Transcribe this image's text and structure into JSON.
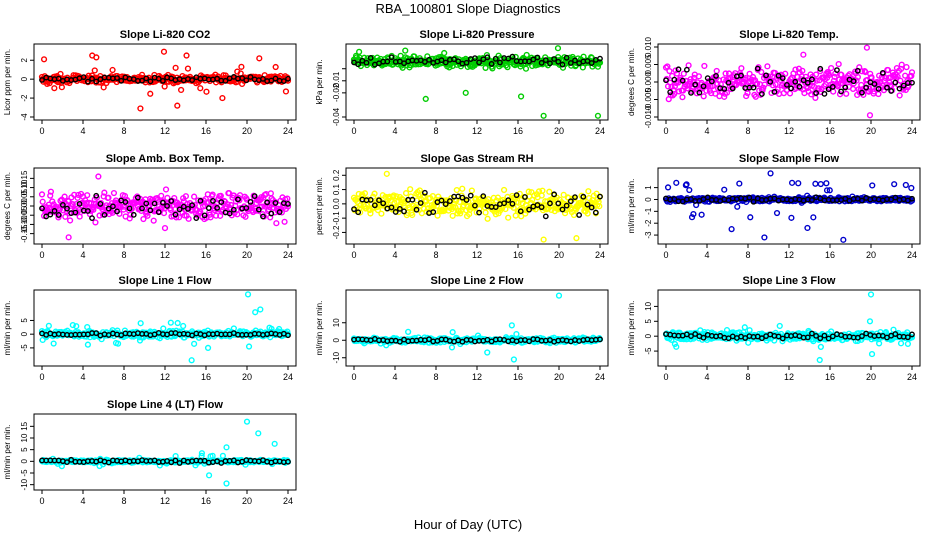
{
  "figure": {
    "title": "RBA_100801  Slope Diagnostics",
    "xlabel": "Hour of Day (UTC)"
  },
  "chart_data": [
    {
      "type": "scatter",
      "title": "Slope Li-820 CO2",
      "ylabel": "Licor ppm per min.",
      "color": "#ff0000",
      "xlim": [
        0,
        24
      ],
      "ylim": [
        -4,
        3.4
      ],
      "xticks": [
        0,
        4,
        8,
        12,
        16,
        20,
        24
      ],
      "yticks": [
        -4,
        -2,
        0,
        2
      ],
      "ytick_labels": [
        "-4",
        "-2",
        "0",
        "2"
      ],
      "series": [
        {
          "role": "samples",
          "spread": 0.35,
          "outlier_amp": 2.6,
          "outliers": [
            [
              0.2,
              2.1
            ],
            [
              0.5,
              -0.5
            ],
            [
              4.9,
              2.5
            ],
            [
              5.3,
              2.3
            ],
            [
              9.6,
              -3.1
            ],
            [
              11.9,
              2.9
            ],
            [
              13.2,
              -2.8
            ],
            [
              14.1,
              2.5
            ],
            [
              17.6,
              -2.0
            ],
            [
              21.2,
              2.2
            ],
            [
              23.8,
              -1.3
            ]
          ]
        },
        {
          "role": "hourly",
          "spread": 0.15
        }
      ]
    },
    {
      "type": "scatter",
      "title": "Slope Li-820 Pressure",
      "ylabel": "kPa per min.",
      "color": "#00cc00",
      "xlim": [
        0,
        24
      ],
      "ylim": [
        -0.04,
        0.018
      ],
      "xticks": [
        0,
        4,
        8,
        12,
        16,
        20,
        24
      ],
      "yticks": [
        -0.04,
        -0.02,
        -0.01,
        0
      ],
      "ytick_labels": [
        "-0.04",
        "-0.02",
        "-0.01",
        ""
      ],
      "series": [
        {
          "role": "samples",
          "center": 0.006,
          "spread": 0.004,
          "outlier_amp": 0.01,
          "outliers": [
            [
              0.5,
              0.014
            ],
            [
              5.0,
              0.015
            ],
            [
              7.0,
              -0.025
            ],
            [
              8.8,
              0.013
            ],
            [
              10.9,
              -0.02
            ],
            [
              16.3,
              -0.023
            ],
            [
              18.5,
              -0.039
            ],
            [
              19.9,
              0.017
            ],
            [
              23.8,
              -0.039
            ]
          ]
        },
        {
          "role": "hourly",
          "center": 0.006,
          "spread": 0.002
        }
      ]
    },
    {
      "type": "scatter",
      "title": "Slope Li-820 Temp.",
      "ylabel": "degrees C per min.",
      "color": "#ff00ff",
      "xlim": [
        0,
        24
      ],
      "ylim": [
        -0.01,
        0.01
      ],
      "xticks": [
        0,
        4,
        8,
        12,
        16,
        20,
        24
      ],
      "yticks": [
        -0.01,
        -0.005,
        0,
        0.005,
        0.01
      ],
      "ytick_labels": [
        "-0.010",
        "-0.005",
        "0.000",
        "0.005",
        "0.010"
      ],
      "series": [
        {
          "role": "samples",
          "spread": 0.0035,
          "outlier_amp": 0.009,
          "outliers": [
            [
              19.6,
              0.0098
            ],
            [
              19.9,
              -0.0095
            ],
            [
              13.4,
              0.0078
            ]
          ]
        },
        {
          "role": "hourly",
          "spread": 0.0025
        }
      ]
    },
    {
      "type": "scatter",
      "title": "Slope Amb. Box Temp.",
      "ylabel": "degrees C per min.",
      "color": "#ff00ff",
      "xlim": [
        0,
        24
      ],
      "ylim": [
        -0.19,
        0.19
      ],
      "xticks": [
        0,
        4,
        8,
        12,
        16,
        20,
        24
      ],
      "yticks": [
        -0.15,
        -0.1,
        -0.05,
        0,
        0.05,
        0.1,
        0.15
      ],
      "ytick_labels": [
        "-0.15",
        "-0.10",
        "-0.05",
        "0.00",
        "0.05",
        "0.10",
        "0.15"
      ],
      "series": [
        {
          "role": "samples",
          "spread": 0.07,
          "outlier_amp": 0.16,
          "outliers": [
            [
              2.6,
              -0.17
            ],
            [
              5.5,
              0.16
            ],
            [
              12.0,
              -0.12
            ]
          ]
        },
        {
          "role": "hourly",
          "spread": 0.04
        }
      ]
    },
    {
      "type": "scatter",
      "title": "Slope Gas Stream RH",
      "ylabel": "percent per min.",
      "color": "#ffff00",
      "xlim": [
        0,
        24
      ],
      "ylim": [
        -0.26,
        0.23
      ],
      "xticks": [
        0,
        4,
        8,
        12,
        16,
        20,
        24
      ],
      "yticks": [
        -0.2,
        -0.1,
        0,
        0.1,
        0.2
      ],
      "ytick_labels": [
        "-0.2",
        "-0.1",
        "0.0",
        "0.1",
        "0.2"
      ],
      "series": [
        {
          "role": "samples",
          "spread": 0.07,
          "outlier_amp": 0.18,
          "outliers": [
            [
              3.2,
              0.21
            ],
            [
              18.5,
              -0.25
            ],
            [
              21.7,
              -0.24
            ]
          ]
        },
        {
          "role": "hourly",
          "spread": 0.05
        }
      ]
    },
    {
      "type": "scatter",
      "title": "Slope Sample Flow",
      "ylabel": "ml/min per min.",
      "color": "#0000cc",
      "xlim": [
        0,
        24
      ],
      "ylim": [
        -3.5,
        2.4
      ],
      "xticks": [
        0,
        4,
        8,
        12,
        16,
        20,
        24
      ],
      "yticks": [
        -3,
        -2,
        -1,
        0,
        1
      ],
      "ytick_labels": [
        "-3",
        "-2",
        "-1",
        "0",
        "1"
      ],
      "series": [
        {
          "role": "samples",
          "spread": 0.15,
          "outlier_amp": 2.6,
          "outliers": [
            [
              10.2,
              2.2
            ],
            [
              6.4,
              -2.5
            ],
            [
              9.6,
              -3.2
            ],
            [
              13.8,
              -2.4
            ],
            [
              17.3,
              -3.4
            ],
            [
              12.3,
              1.4
            ],
            [
              15.1,
              1.3
            ]
          ]
        },
        {
          "role": "hourly",
          "spread": 0.1
        }
      ]
    },
    {
      "type": "scatter",
      "title": "Slope Line 1 Flow",
      "ylabel": "ml/min per min.",
      "color": "#00ffff",
      "xlim": [
        0,
        24
      ],
      "ylim": [
        -10.5,
        15
      ],
      "xticks": [
        0,
        4,
        8,
        12,
        16,
        20,
        24
      ],
      "yticks": [
        -5,
        0,
        5
      ],
      "ytick_labels": [
        "-5",
        "0",
        "5"
      ],
      "series": [
        {
          "role": "samples",
          "spread": 1.0,
          "outlier_amp": 7,
          "outliers": [
            [
              20.1,
              14.5
            ],
            [
              21.3,
              9.0
            ],
            [
              20.8,
              8.0
            ],
            [
              14.6,
              -9.5
            ],
            [
              16.2,
              -5.0
            ],
            [
              20.2,
              -4.5
            ]
          ]
        },
        {
          "role": "hourly",
          "spread": 0.3
        }
      ]
    },
    {
      "type": "scatter",
      "title": "Slope Line 2 Flow",
      "ylabel": "ml/min per min.",
      "color": "#00ffff",
      "xlim": [
        0,
        24
      ],
      "ylim": [
        -13,
        27
      ],
      "xticks": [
        0,
        4,
        8,
        12,
        16,
        20,
        24
      ],
      "yticks": [
        -10,
        0,
        10
      ],
      "ytick_labels": [
        "-10",
        "0",
        "10"
      ],
      "series": [
        {
          "role": "samples",
          "spread": 1.2,
          "outlier_amp": 8,
          "outliers": [
            [
              20.0,
              25.5
            ],
            [
              15.4,
              8.5
            ],
            [
              15.6,
              -11.0
            ],
            [
              13.0,
              -7.0
            ]
          ]
        },
        {
          "role": "hourly",
          "spread": 0.5
        }
      ]
    },
    {
      "type": "scatter",
      "title": "Slope Line 3 Flow",
      "ylabel": "ml/min per min.",
      "color": "#00ffff",
      "xlim": [
        0,
        24
      ],
      "ylim": [
        -9,
        14.5
      ],
      "xticks": [
        0,
        4,
        8,
        12,
        16,
        20,
        24
      ],
      "yticks": [
        -5,
        0,
        5,
        10
      ],
      "ytick_labels": [
        "-5",
        "0",
        "5",
        "10"
      ],
      "series": [
        {
          "role": "samples",
          "spread": 1.2,
          "outlier_amp": 6,
          "outliers": [
            [
              20.0,
              14.0
            ],
            [
              20.1,
              -6.0
            ],
            [
              19.9,
              5.0
            ],
            [
              15.0,
              -8.0
            ]
          ]
        },
        {
          "role": "hourly",
          "spread": 0.5
        }
      ]
    },
    {
      "type": "scatter",
      "title": "Slope Line 4 (LT) Flow",
      "ylabel": "ml/min per min.",
      "color": "#00ffff",
      "xlim": [
        0,
        24
      ],
      "ylim": [
        -11,
        19
      ],
      "xticks": [
        0,
        4,
        8,
        12,
        16,
        20,
        24
      ],
      "yticks": [
        -10,
        -5,
        0,
        5,
        10,
        15
      ],
      "ytick_labels": [
        "-10",
        "-5",
        "0",
        "5",
        "10",
        "15"
      ],
      "series": [
        {
          "role": "samples",
          "spread": 0.5,
          "outlier_amp": 4,
          "outliers": [
            [
              20.0,
              17.0
            ],
            [
              21.1,
              12.0
            ],
            [
              18.0,
              6.0
            ],
            [
              15.6,
              3.5
            ],
            [
              22.7,
              7.5
            ],
            [
              18.0,
              -9.5
            ],
            [
              16.3,
              -6.0
            ]
          ]
        },
        {
          "role": "hourly",
          "spread": 0.4
        }
      ]
    }
  ]
}
